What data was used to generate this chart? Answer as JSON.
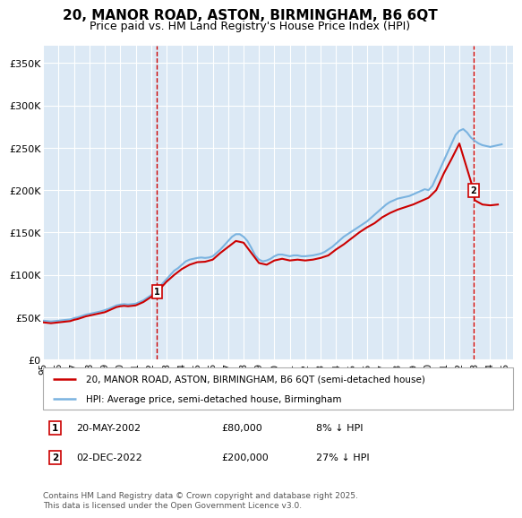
{
  "title": "20, MANOR ROAD, ASTON, BIRMINGHAM, B6 6QT",
  "subtitle": "Price paid vs. HM Land Registry's House Price Index (HPI)",
  "title_fontsize": 11,
  "subtitle_fontsize": 9,
  "ylabel_ticks": [
    "£0",
    "£50K",
    "£100K",
    "£150K",
    "£200K",
    "£250K",
    "£300K",
    "£350K"
  ],
  "ylabel_values": [
    0,
    50000,
    100000,
    150000,
    200000,
    250000,
    300000,
    350000
  ],
  "ylim": [
    0,
    370000
  ],
  "xlim_start": 1995.0,
  "xlim_end": 2025.5,
  "plot_bg": "#dce9f5",
  "grid_color": "#ffffff",
  "hpi_color": "#7ab3e0",
  "price_color": "#cc0000",
  "vline_color": "#cc0000",
  "marker1_x": 2002.38,
  "marker1_y": 80000,
  "marker1_label": "1",
  "marker2_x": 2022.92,
  "marker2_y": 200000,
  "marker2_label": "2",
  "legend_line1": "20, MANOR ROAD, ASTON, BIRMINGHAM, B6 6QT (semi-detached house)",
  "legend_line2": "HPI: Average price, semi-detached house, Birmingham",
  "annotation1_num": "1",
  "annotation1_date": "20-MAY-2002",
  "annotation1_price": "£80,000",
  "annotation1_hpi": "8% ↓ HPI",
  "annotation2_num": "2",
  "annotation2_date": "02-DEC-2022",
  "annotation2_price": "£200,000",
  "annotation2_hpi": "27% ↓ HPI",
  "footer": "Contains HM Land Registry data © Crown copyright and database right 2025.\nThis data is licensed under the Open Government Licence v3.0.",
  "hpi_data_x": [
    1995.0,
    1995.25,
    1995.5,
    1995.75,
    1996.0,
    1996.25,
    1996.5,
    1996.75,
    1997.0,
    1997.25,
    1997.5,
    1997.75,
    1998.0,
    1998.25,
    1998.5,
    1998.75,
    1999.0,
    1999.25,
    1999.5,
    1999.75,
    2000.0,
    2000.25,
    2000.5,
    2000.75,
    2001.0,
    2001.25,
    2001.5,
    2001.75,
    2002.0,
    2002.25,
    2002.5,
    2002.75,
    2003.0,
    2003.25,
    2003.5,
    2003.75,
    2004.0,
    2004.25,
    2004.5,
    2004.75,
    2005.0,
    2005.25,
    2005.5,
    2005.75,
    2006.0,
    2006.25,
    2006.5,
    2006.75,
    2007.0,
    2007.25,
    2007.5,
    2007.75,
    2008.0,
    2008.25,
    2008.5,
    2008.75,
    2009.0,
    2009.25,
    2009.5,
    2009.75,
    2010.0,
    2010.25,
    2010.5,
    2010.75,
    2011.0,
    2011.25,
    2011.5,
    2011.75,
    2012.0,
    2012.25,
    2012.5,
    2012.75,
    2013.0,
    2013.25,
    2013.5,
    2013.75,
    2014.0,
    2014.25,
    2014.5,
    2014.75,
    2015.0,
    2015.25,
    2015.5,
    2015.75,
    2016.0,
    2016.25,
    2016.5,
    2016.75,
    2017.0,
    2017.25,
    2017.5,
    2017.75,
    2018.0,
    2018.25,
    2018.5,
    2018.75,
    2019.0,
    2019.25,
    2019.5,
    2019.75,
    2020.0,
    2020.25,
    2020.5,
    2020.75,
    2021.0,
    2021.25,
    2021.5,
    2021.75,
    2022.0,
    2022.25,
    2022.5,
    2022.75,
    2023.0,
    2023.25,
    2023.5,
    2023.75,
    2024.0,
    2024.25,
    2024.5,
    2024.75
  ],
  "hpi_data_y": [
    46000,
    45500,
    45000,
    45500,
    46000,
    46500,
    47000,
    47500,
    49000,
    50000,
    51500,
    53000,
    54000,
    55000,
    56000,
    57000,
    58500,
    60000,
    62000,
    64000,
    65000,
    65500,
    65000,
    65500,
    66000,
    68000,
    70000,
    73000,
    76000,
    80000,
    85000,
    90000,
    95000,
    100000,
    105000,
    108000,
    112000,
    116000,
    118000,
    119000,
    120000,
    120500,
    120000,
    120500,
    122000,
    126000,
    130000,
    135000,
    140000,
    145000,
    148000,
    148000,
    145000,
    140000,
    132000,
    123000,
    118000,
    116000,
    117000,
    119000,
    122000,
    124000,
    124000,
    123000,
    122000,
    123000,
    123000,
    122000,
    122000,
    122500,
    123000,
    124000,
    125000,
    127000,
    130000,
    133000,
    137000,
    141000,
    145000,
    148000,
    151000,
    154000,
    157000,
    160000,
    163000,
    167000,
    171000,
    175000,
    179000,
    183000,
    186000,
    188000,
    190000,
    191000,
    192000,
    193000,
    195000,
    197000,
    199000,
    201000,
    200000,
    205000,
    215000,
    225000,
    235000,
    245000,
    255000,
    265000,
    270000,
    272000,
    268000,
    262000,
    258000,
    255000,
    253000,
    252000,
    251000,
    252000,
    253000,
    254000
  ],
  "price_data_x": [
    1995.0,
    1995.25,
    1995.5,
    1995.75,
    1996.0,
    1996.25,
    1996.5,
    1996.75,
    1997.0,
    1997.25,
    1997.5,
    1997.75,
    1998.0,
    1998.25,
    1998.5,
    1998.75,
    1999.0,
    1999.25,
    1999.5,
    1999.75,
    2000.0,
    2000.25,
    2000.5,
    2000.75,
    2001.0,
    2001.25,
    2001.5,
    2001.75,
    2002.0,
    2002.38,
    2002.75,
    2003.0,
    2003.5,
    2004.0,
    2004.5,
    2005.0,
    2005.5,
    2006.0,
    2006.5,
    2007.0,
    2007.5,
    2008.0,
    2008.5,
    2009.0,
    2009.5,
    2010.0,
    2010.5,
    2011.0,
    2011.5,
    2012.0,
    2012.5,
    2013.0,
    2013.5,
    2014.0,
    2014.5,
    2015.0,
    2015.5,
    2016.0,
    2016.5,
    2017.0,
    2017.5,
    2018.0,
    2018.5,
    2019.0,
    2019.5,
    2020.0,
    2020.5,
    2021.0,
    2021.5,
    2022.0,
    2022.92,
    2023.0,
    2023.5,
    2024.0,
    2024.5
  ],
  "price_data_y": [
    44000,
    43500,
    43000,
    43500,
    44000,
    44500,
    45000,
    45500,
    47000,
    48000,
    49500,
    51000,
    52000,
    53000,
    54000,
    55000,
    56000,
    58000,
    60000,
    62000,
    63000,
    63500,
    63000,
    63500,
    64000,
    66000,
    68000,
    71000,
    74000,
    80000,
    87000,
    92000,
    100000,
    107000,
    112000,
    115000,
    115500,
    118000,
    126000,
    133000,
    140000,
    138000,
    126000,
    114000,
    112000,
    117000,
    119000,
    117000,
    118000,
    117000,
    118000,
    120000,
    123000,
    130000,
    136000,
    143000,
    150000,
    156000,
    161000,
    168000,
    173000,
    177000,
    180000,
    183000,
    187000,
    191000,
    200000,
    220000,
    237000,
    255000,
    200000,
    188000,
    183000,
    182000,
    183000
  ]
}
